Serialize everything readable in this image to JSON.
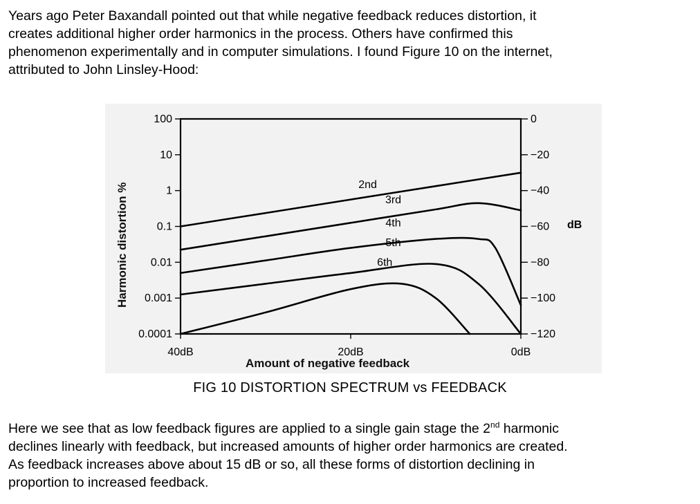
{
  "intro": {
    "lines": [
      "Years ago Peter Baxandall pointed out that while negative feedback reduces distortion, it",
      "creates additional higher order harmonics in the process.  Others have confirmed this",
      "phenomenon experimentally and in computer simulations.  I found Figure 10 on the internet,",
      "attributed to John Linsley-Hood:"
    ]
  },
  "figure": {
    "caption": "FIG 10  DISTORTION SPECTRUM vs FEEDBACK"
  },
  "chart_data": {
    "type": "line",
    "xlabel": "Amount of negative feedback",
    "ylabel": "Harmonic distortion %",
    "x_ticks": [
      "40dB",
      "20dB",
      "0dB"
    ],
    "y_ticks_left": [
      "100",
      "10",
      "1",
      "0.1",
      "0.01",
      "0.001",
      "0.0001"
    ],
    "y_ticks_right": [
      "0",
      "−20",
      "−40",
      "−60",
      "−80",
      "−100",
      "−120"
    ],
    "y_right_unit": "dB",
    "xlim": [
      40,
      0
    ],
    "ylim_right_db": [
      -120,
      0
    ],
    "log_scale_left": true,
    "grid": false,
    "series": [
      {
        "name": "2nd",
        "x": [
          40,
          30,
          20,
          10,
          0
        ],
        "y_db": [
          -60,
          -52.5,
          -45,
          -37.5,
          -30
        ]
      },
      {
        "name": "3rd",
        "x": [
          40,
          30,
          20,
          10,
          5,
          0
        ],
        "y_db": [
          -73,
          -65.5,
          -58,
          -50.5,
          -47,
          -51
        ]
      },
      {
        "name": "4th",
        "x": [
          40,
          30,
          20,
          10,
          5,
          3,
          0
        ],
        "y_db": [
          -86,
          -79,
          -72,
          -67,
          -67,
          -72,
          -104
        ]
      },
      {
        "name": "5th",
        "x": [
          40,
          30,
          20,
          10,
          5,
          0
        ],
        "y_db": [
          -98,
          -92,
          -86,
          -81,
          -92,
          -120
        ]
      },
      {
        "name": "6th",
        "x": [
          40,
          30,
          20,
          14,
          10,
          6
        ],
        "y_db": [
          -120,
          -108,
          -95,
          -92,
          -100,
          -120
        ]
      }
    ]
  },
  "conclusion": {
    "line1_pre": "Here we see that as low feedback figures are applied to a single gain stage the 2",
    "line1_sup": "nd",
    "line1_post": " harmonic",
    "line2": "declines linearly with feedback, but increased amounts of higher order harmonics are created.",
    "line3": "As feedback increases above about 15 dB or so, all these forms of distortion declining in",
    "line4": "proportion to increased feedback."
  }
}
